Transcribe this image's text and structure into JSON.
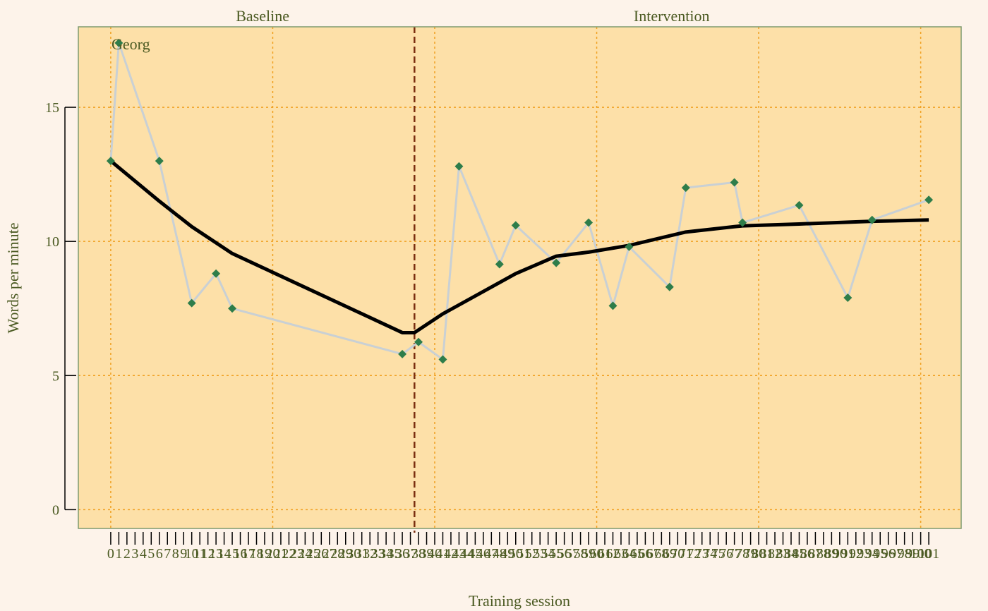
{
  "chart_data": {
    "type": "line",
    "ylabel": "Words per minute",
    "xlabel": "Training session",
    "participant_label": "Georg",
    "phases": [
      {
        "label": "Baseline",
        "range": [
          0,
          37.5
        ]
      },
      {
        "label": "Intervention",
        "range": [
          37.5,
          101
        ]
      }
    ],
    "phase_change_x": 37.5,
    "xlim": [
      -4,
      105
    ],
    "ylim": [
      -0.7,
      18
    ],
    "x_ticks": [
      0,
      101
    ],
    "x_tick_labels": [
      "0",
      "1",
      "2",
      "3",
      "4",
      "5",
      "6",
      "7",
      "8",
      "9",
      "10",
      "11",
      "12",
      "13",
      "14",
      "15",
      "16",
      "17",
      "18",
      "19",
      "20",
      "21",
      "22",
      "23",
      "24",
      "25",
      "26",
      "27",
      "28",
      "29",
      "30",
      "31",
      "32",
      "33",
      "34",
      "35",
      "36",
      "37",
      "38",
      "39",
      "40",
      "41",
      "42",
      "43",
      "44",
      "45",
      "46",
      "47",
      "48",
      "49",
      "50",
      "51",
      "52",
      "53",
      "54",
      "55",
      "56",
      "57",
      "58",
      "59",
      "60",
      "61",
      "62",
      "63",
      "64",
      "65",
      "66",
      "67",
      "68",
      "69",
      "70",
      "71",
      "72",
      "73",
      "74",
      "75",
      "76",
      "77",
      "78",
      "79",
      "80",
      "81",
      "82",
      "83",
      "84",
      "85",
      "86",
      "87",
      "88",
      "89",
      "90",
      "91",
      "92",
      "93",
      "94",
      "95",
      "96",
      "97",
      "98",
      "99",
      "100",
      "101"
    ],
    "y_ticks": [
      0,
      5,
      10,
      15
    ],
    "y_tick_labels": [
      "0",
      "5",
      "10",
      "15"
    ],
    "x_grid": [
      0,
      20,
      40,
      60,
      80,
      100
    ],
    "grid": true,
    "series": [
      {
        "x": [
          0,
          1,
          6,
          10,
          13,
          15,
          36,
          38,
          41,
          43,
          48,
          50,
          55,
          59,
          62,
          64,
          69,
          71,
          77,
          78,
          85,
          91,
          94,
          101
        ],
        "y": [
          13.0,
          17.4,
          13.0,
          7.7,
          8.8,
          7.5,
          5.8,
          6.25,
          5.6,
          12.8,
          9.15,
          10.6,
          9.2,
          10.7,
          7.6,
          9.8,
          8.3,
          12.0,
          12.2,
          10.7,
          11.35,
          7.9,
          10.8,
          11.55
        ]
      },
      {
        "x": [
          0,
          6,
          10,
          15,
          36,
          37.5,
          41,
          50,
          55,
          59,
          64,
          71,
          77,
          78,
          85,
          94,
          101
        ],
        "y": [
          13.0,
          11.5,
          10.55,
          9.55,
          6.6,
          6.6,
          7.3,
          8.8,
          9.45,
          9.6,
          9.85,
          10.35,
          10.55,
          10.58,
          10.65,
          10.75,
          10.8
        ]
      }
    ],
    "colors": {
      "background": "#fdf3ea",
      "plot_fill": "#fde0a8",
      "frame": "#7f9a6e",
      "grid": "#f0a020",
      "phase_line": "#7a2e10",
      "raw_line": "#c9d0d4",
      "point": "#2e7d4a",
      "trend_line": "#000000",
      "text": "#4b5a22"
    }
  }
}
